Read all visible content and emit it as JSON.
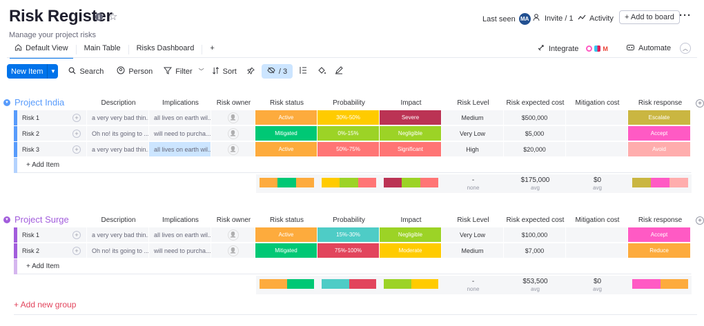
{
  "header": {
    "title": "Risk Register",
    "subtitle": "Manage your project risks",
    "last_seen_label": "Last seen",
    "avatar_initials": "MA",
    "invite_label": "Invite / 1",
    "activity_label": "Activity",
    "add_to_board_label": "+ Add to board"
  },
  "tabs": [
    {
      "label": "Default View",
      "active": true
    },
    {
      "label": "Main Table"
    },
    {
      "label": "Risks Dashboard"
    },
    {
      "label": "+"
    }
  ],
  "right_tools": {
    "integrate": "Integrate",
    "automate": "Automate"
  },
  "toolbar": {
    "new_item": "New Item",
    "search": "Search",
    "person": "Person",
    "filter": "Filter",
    "sort": "Sort",
    "hidden_count": "/ 3"
  },
  "columns": [
    "Description",
    "Implications",
    "Risk owner",
    "Risk status",
    "Probability",
    "Impact",
    "Risk Level",
    "Risk expected cost",
    "Mitigation cost",
    "Risk response"
  ],
  "colors": {
    "active": "#fdab3d",
    "mitigated": "#00c875",
    "prob_yellow": "#ffcb00",
    "prob_lime": "#9cd326",
    "prob_red": "#ff7575",
    "prob_teal": "#4eccc6",
    "prob_crimson": "#e2445c",
    "severe": "#bb3354",
    "negligible": "#9cd326",
    "significant": "#ff7575",
    "moderate": "#ffcb00",
    "escalate": "#cab641",
    "accept": "#ff5ac4",
    "avoid": "#ffadad",
    "reduce": "#fdab3d",
    "group_india": "#579bfc",
    "group_surge": "#a25ddc"
  },
  "groups": [
    {
      "title": "Project India",
      "rows": [
        {
          "name": "Risk 1",
          "description": "a very very bad thin...",
          "implications": "all lives on earth wil...",
          "status": "Active",
          "probability": "30%-50%",
          "impact": "Severe",
          "level": "Medium",
          "expected_cost": "$500,000",
          "mitigation_cost": "",
          "response": "Escalate"
        },
        {
          "name": "Risk 2",
          "description": "Oh no! its going to ...",
          "implications": "will need to purcha...",
          "status": "Mitigated",
          "probability": "0%-15%",
          "impact": "Negligible",
          "level": "Very Low",
          "expected_cost": "$5,000",
          "mitigation_cost": "",
          "response": "Accept"
        },
        {
          "name": "Risk 3",
          "description": "a very very bad thin...",
          "implications": "all lives on earth wil...",
          "status": "Active",
          "probability": "50%-75%",
          "impact": "Significant",
          "level": "High",
          "expected_cost": "$20,000",
          "mitigation_cost": "",
          "response": "Avoid"
        }
      ],
      "add_item": "+ Add Item",
      "summary": {
        "level_value": "-",
        "level_label": "none",
        "expected_value": "$175,000",
        "expected_label": "avg",
        "mitigation_value": "$0",
        "mitigation_label": "avg"
      }
    },
    {
      "title": "Project Surge",
      "rows": [
        {
          "name": "Risk 1",
          "description": "a very very bad thin...",
          "implications": "all lives on earth wil...",
          "status": "Active",
          "probability": "15%-30%",
          "impact": "Negligible",
          "level": "Very Low",
          "expected_cost": "$100,000",
          "mitigation_cost": "",
          "response": "Accept"
        },
        {
          "name": "Risk 2",
          "description": "Oh no! its going to ...",
          "implications": "will need to purcha...",
          "status": "Mitigated",
          "probability": "75%-100%",
          "impact": "Moderate",
          "level": "Medium",
          "expected_cost": "$7,000",
          "mitigation_cost": "",
          "response": "Reduce"
        }
      ],
      "add_item": "+ Add Item",
      "summary": {
        "level_value": "-",
        "level_label": "none",
        "expected_value": "$53,500",
        "expected_label": "avg",
        "mitigation_value": "$0",
        "mitigation_label": "avg"
      }
    }
  ],
  "add_new_group": "+ Add new group"
}
